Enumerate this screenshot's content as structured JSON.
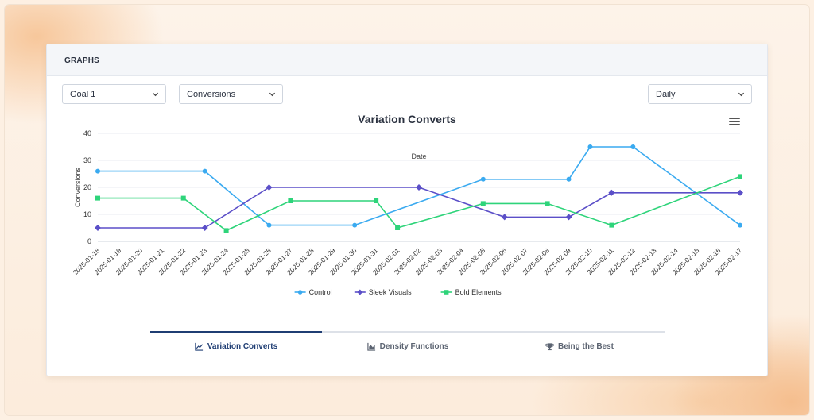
{
  "header": {
    "title": "GRAPHS"
  },
  "filters": {
    "goal": "Goal 1",
    "metric": "Conversions",
    "interval": "Daily"
  },
  "tabs": [
    {
      "label": "Variation Converts",
      "icon": "line-chart-icon",
      "active": true
    },
    {
      "label": "Density Functions",
      "icon": "area-chart-icon",
      "active": false
    },
    {
      "label": "Being the Best",
      "icon": "trophy-icon",
      "active": false
    }
  ],
  "chart_data": {
    "type": "line",
    "title": "Variation Converts",
    "xlabel": "Date",
    "ylabel": "Conversions",
    "ylim": [
      0,
      40
    ],
    "yticks": [
      0,
      10,
      20,
      30,
      40
    ],
    "grid": true,
    "legend_position": "bottom",
    "categories": [
      "2025-01-18",
      "2025-01-19",
      "2025-01-20",
      "2025-01-21",
      "2025-01-22",
      "2025-01-23",
      "2025-01-24",
      "2025-01-25",
      "2025-01-26",
      "2025-01-27",
      "2025-01-28",
      "2025-01-29",
      "2025-01-30",
      "2025-01-31",
      "2025-02-01",
      "2025-02-02",
      "2025-02-03",
      "2025-02-04",
      "2025-02-05",
      "2025-02-06",
      "2025-02-07",
      "2025-02-08",
      "2025-02-09",
      "2025-02-10",
      "2025-02-11",
      "2025-02-12",
      "2025-02-13",
      "2025-02-14",
      "2025-02-15",
      "2025-02-16",
      "2025-02-17"
    ],
    "series": [
      {
        "name": "Control",
        "color": "#3aaaf0",
        "marker": "circle",
        "points": [
          {
            "x": "2025-01-18",
            "y": 26
          },
          {
            "x": "2025-01-23",
            "y": 26
          },
          {
            "x": "2025-01-26",
            "y": 6
          },
          {
            "x": "2025-01-30",
            "y": 6
          },
          {
            "x": "2025-02-05",
            "y": 23
          },
          {
            "x": "2025-02-09",
            "y": 23
          },
          {
            "x": "2025-02-10",
            "y": 35
          },
          {
            "x": "2025-02-12",
            "y": 35
          },
          {
            "x": "2025-02-17",
            "y": 6
          }
        ]
      },
      {
        "name": "Sleek Visuals",
        "color": "#5b4fc8",
        "marker": "diamond",
        "points": [
          {
            "x": "2025-01-18",
            "y": 5
          },
          {
            "x": "2025-01-23",
            "y": 5
          },
          {
            "x": "2025-01-26",
            "y": 20
          },
          {
            "x": "2025-02-02",
            "y": 20
          },
          {
            "x": "2025-02-06",
            "y": 9
          },
          {
            "x": "2025-02-09",
            "y": 9
          },
          {
            "x": "2025-02-11",
            "y": 18
          },
          {
            "x": "2025-02-17",
            "y": 18
          }
        ]
      },
      {
        "name": "Bold Elements",
        "color": "#2ed47a",
        "marker": "square",
        "points": [
          {
            "x": "2025-01-18",
            "y": 16
          },
          {
            "x": "2025-01-22",
            "y": 16
          },
          {
            "x": "2025-01-24",
            "y": 4
          },
          {
            "x": "2025-01-27",
            "y": 15
          },
          {
            "x": "2025-01-31",
            "y": 15
          },
          {
            "x": "2025-02-01",
            "y": 5
          },
          {
            "x": "2025-02-05",
            "y": 14
          },
          {
            "x": "2025-02-08",
            "y": 14
          },
          {
            "x": "2025-02-11",
            "y": 6
          },
          {
            "x": "2025-02-17",
            "y": 24
          }
        ]
      }
    ]
  }
}
